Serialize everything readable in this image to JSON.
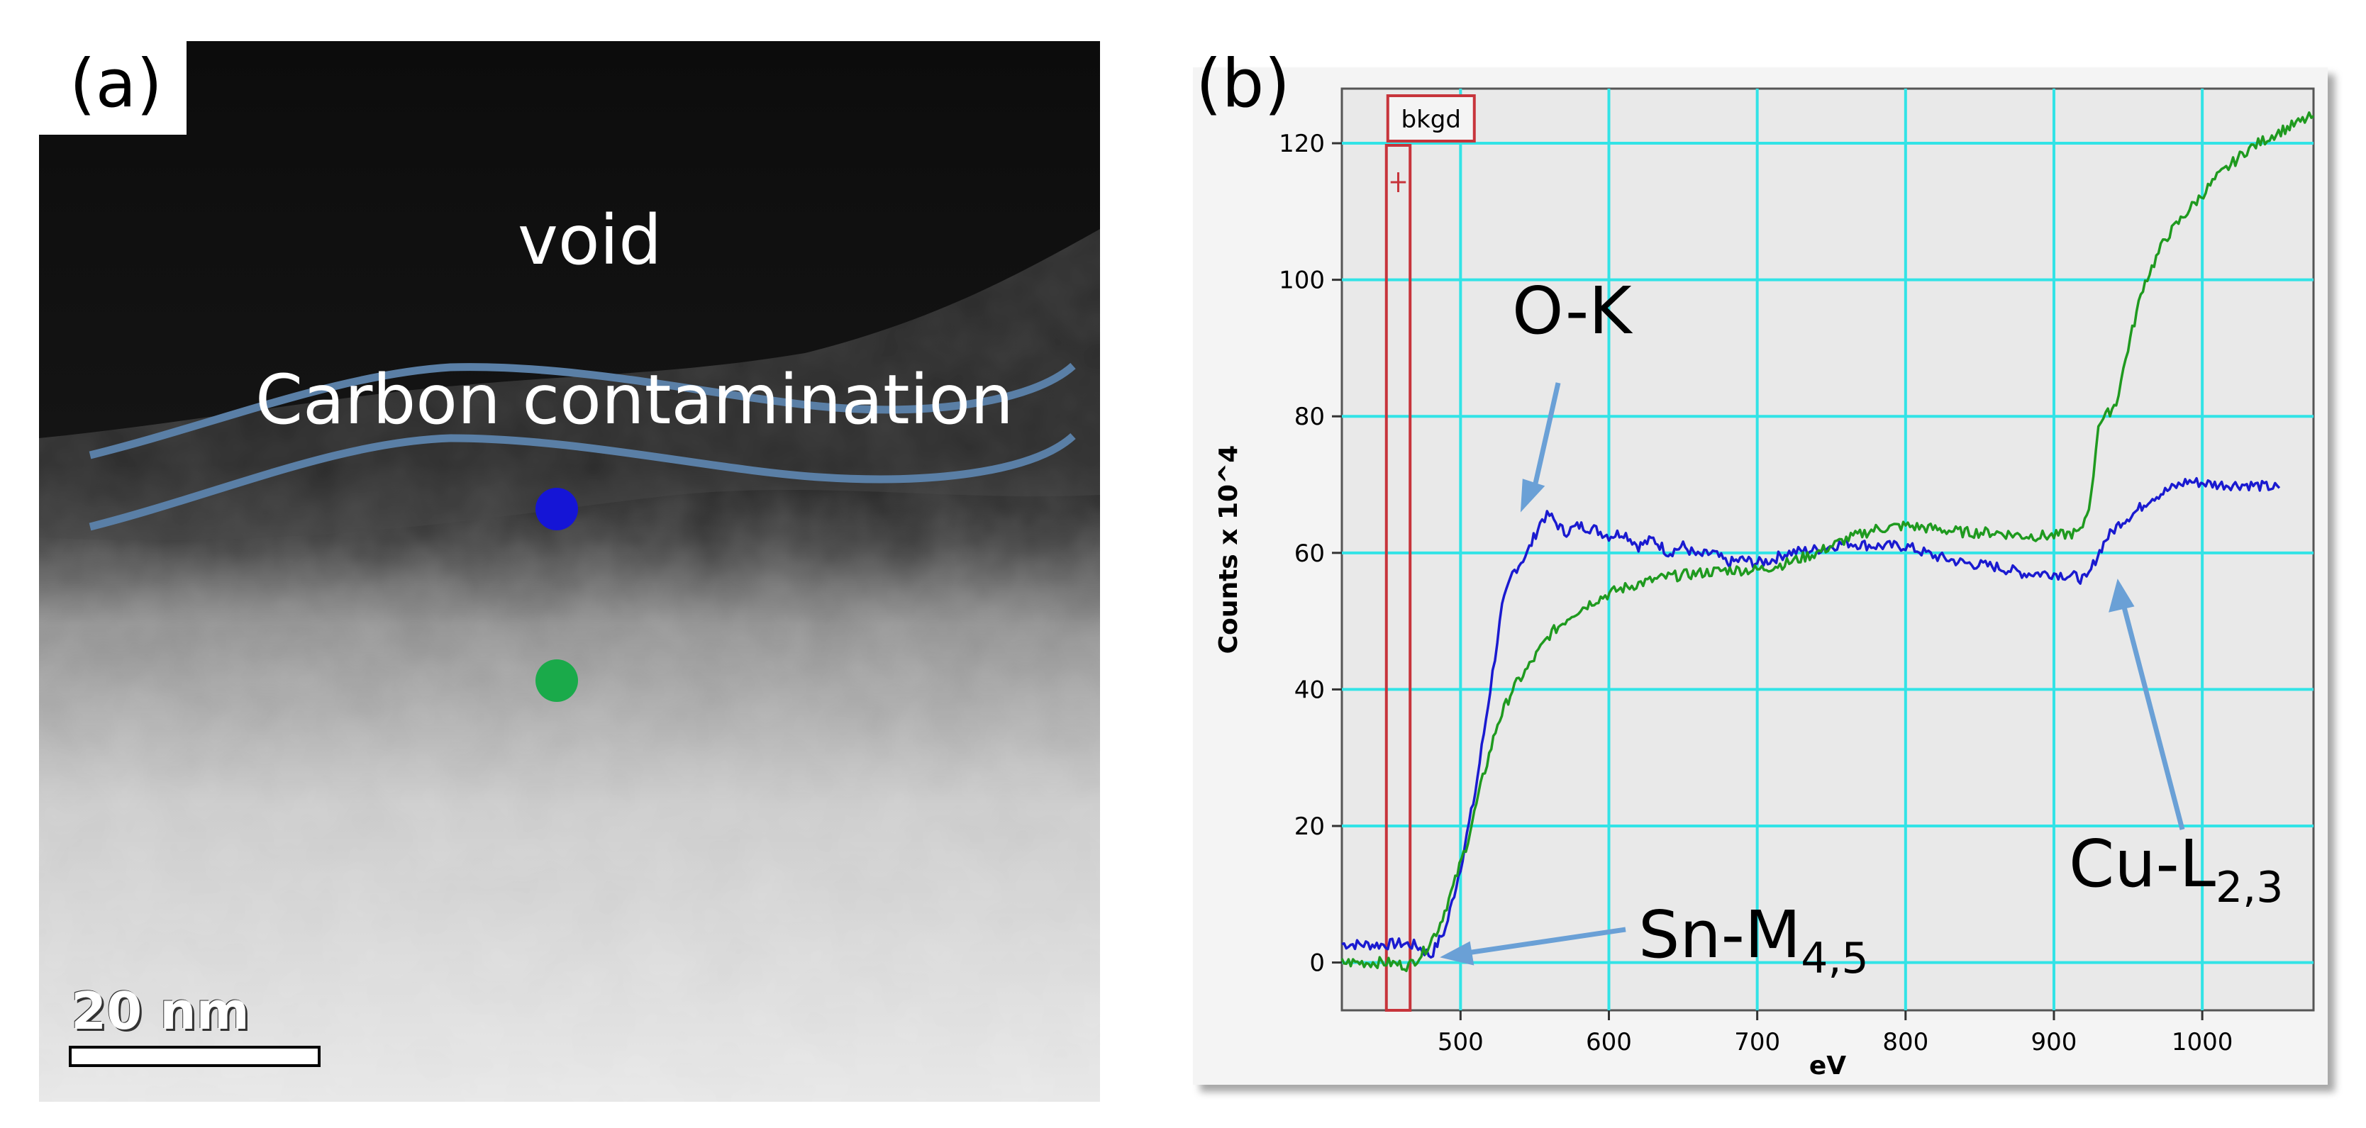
{
  "panel_a": {
    "label": "(a)",
    "void_label": "void",
    "carbon_label": "Carbon contamination",
    "scale_bar_label": "20 nm",
    "marker_colors": {
      "blue_point": "#1515d6",
      "green_point": "#1aaa4a"
    },
    "line_color": "#5a7fa6"
  },
  "panel_b": {
    "label": "(b)"
  },
  "chart_data": {
    "type": "line",
    "title": "",
    "xlabel": "eV",
    "ylabel": "Counts x 10^4",
    "xlim": [
      420,
      1075
    ],
    "ylim": [
      -7,
      128
    ],
    "xticks": [
      500,
      600,
      700,
      800,
      900,
      1000
    ],
    "yticks": [
      0,
      20,
      40,
      60,
      80,
      100,
      120
    ],
    "grid": true,
    "grid_color": "#32e3e6",
    "background": "#e9e9e9",
    "background_window": {
      "label": "bkgd",
      "x_start": 450,
      "x_end": 466,
      "color": "#c7343b"
    },
    "series": [
      {
        "name": "blue",
        "color": "#1a1ad0",
        "points": [
          [
            420,
            2.7
          ],
          [
            445,
            2.6
          ],
          [
            460,
            2.8
          ],
          [
            470,
            2.5
          ],
          [
            480,
            1.0
          ],
          [
            490,
            5
          ],
          [
            500,
            14
          ],
          [
            510,
            25
          ],
          [
            520,
            40
          ],
          [
            528,
            52
          ],
          [
            535,
            57
          ],
          [
            545,
            60
          ],
          [
            555,
            65
          ],
          [
            560,
            65.5
          ],
          [
            570,
            63
          ],
          [
            580,
            64
          ],
          [
            590,
            63.5
          ],
          [
            600,
            62.5
          ],
          [
            610,
            63
          ],
          [
            620,
            61
          ],
          [
            630,
            62
          ],
          [
            640,
            60
          ],
          [
            650,
            61
          ],
          [
            660,
            59.5
          ],
          [
            670,
            60
          ],
          [
            680,
            58.5
          ],
          [
            690,
            59
          ],
          [
            700,
            58.5
          ],
          [
            710,
            59
          ],
          [
            720,
            60
          ],
          [
            740,
            60.5
          ],
          [
            760,
            61.5
          ],
          [
            780,
            61
          ],
          [
            800,
            61
          ],
          [
            820,
            59.5
          ],
          [
            840,
            58.5
          ],
          [
            860,
            58
          ],
          [
            880,
            57
          ],
          [
            900,
            57
          ],
          [
            915,
            56.5
          ],
          [
            922,
            56
          ],
          [
            928,
            59
          ],
          [
            935,
            62
          ],
          [
            945,
            64.5
          ],
          [
            955,
            66
          ],
          [
            965,
            68
          ],
          [
            975,
            69
          ],
          [
            990,
            70.5
          ],
          [
            1010,
            70
          ],
          [
            1030,
            70
          ],
          [
            1052,
            69.5
          ]
        ]
      },
      {
        "name": "green",
        "color": "#1f9a1f",
        "points": [
          [
            420,
            0
          ],
          [
            450,
            0
          ],
          [
            465,
            -0.5
          ],
          [
            475,
            1.5
          ],
          [
            485,
            5
          ],
          [
            495,
            11
          ],
          [
            505,
            18
          ],
          [
            515,
            27
          ],
          [
            525,
            35
          ],
          [
            535,
            40
          ],
          [
            545,
            43
          ],
          [
            560,
            48
          ],
          [
            575,
            51
          ],
          [
            590,
            53
          ],
          [
            605,
            54.5
          ],
          [
            620,
            55.5
          ],
          [
            640,
            56.5
          ],
          [
            660,
            57
          ],
          [
            680,
            57.5
          ],
          [
            700,
            57.5
          ],
          [
            720,
            58.5
          ],
          [
            740,
            60
          ],
          [
            760,
            62
          ],
          [
            780,
            63.5
          ],
          [
            800,
            64
          ],
          [
            820,
            63.5
          ],
          [
            840,
            63
          ],
          [
            860,
            63
          ],
          [
            880,
            62.5
          ],
          [
            900,
            62.5
          ],
          [
            918,
            63
          ],
          [
            925,
            68
          ],
          [
            930,
            79
          ],
          [
            935,
            80
          ],
          [
            942,
            82
          ],
          [
            950,
            90
          ],
          [
            960,
            99
          ],
          [
            975,
            106
          ],
          [
            990,
            110
          ],
          [
            1010,
            115
          ],
          [
            1030,
            119
          ],
          [
            1050,
            121.5
          ],
          [
            1075,
            124
          ]
        ]
      }
    ],
    "annotations": [
      "O-K",
      "Sn-M",
      "4,5",
      "Cu-L",
      "2,3"
    ]
  }
}
